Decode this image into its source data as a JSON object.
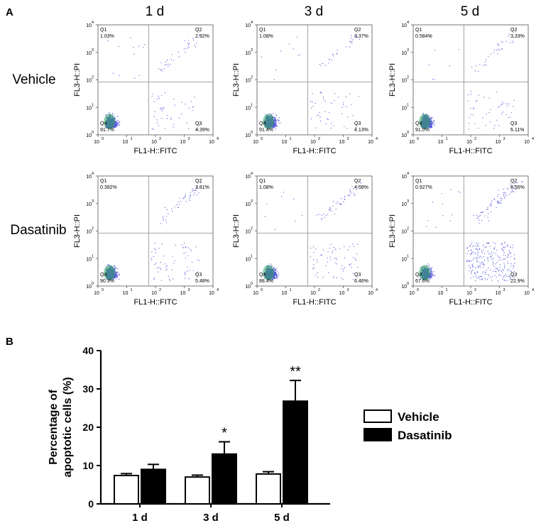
{
  "panel_a_label": "A",
  "panel_b_label": "B",
  "columns": [
    "1 d",
    "3 d",
    "5 d"
  ],
  "rows": [
    "Vehicle",
    "Dasatinib"
  ],
  "flow": {
    "xlabel": "FL1-H::FITC",
    "ylabel": "FL3-H::PI",
    "tick_base": "10",
    "tick_exps": [
      "0",
      "1",
      "2",
      "3",
      "4"
    ],
    "quadrant_names": [
      "Q1",
      "Q2",
      "Q3",
      "Q4"
    ],
    "dot_color": "#3a3ad8",
    "plots": [
      {
        "row": "Vehicle",
        "day": "1 d",
        "q1": "1.03%",
        "q2": "2.92%",
        "q3": "4.39%",
        "q4": "91.7%"
      },
      {
        "row": "Vehicle",
        "day": "3 d",
        "q1": "1.08%",
        "q2": "3.37%",
        "q3": "4.13%",
        "q4": "91.4%"
      },
      {
        "row": "Vehicle",
        "day": "5 d",
        "q1": "0.584%",
        "q2": "3.33%",
        "q3": "5.11%",
        "q4": "91.0%"
      },
      {
        "row": "Dasatinib",
        "day": "1 d",
        "q1": "0.392%",
        "q2": "3.81%",
        "q3": "5.48%",
        "q4": "90.3%"
      },
      {
        "row": "Dasatinib",
        "day": "3 d",
        "q1": "1.08%",
        "q2": "4.09%",
        "q3": "6.46%",
        "q4": "88.4%"
      },
      {
        "row": "Dasatinib",
        "day": "5 d",
        "q1": "0.927%",
        "q2": "8.56%",
        "q3": "22.9%",
        "q4": "67.6%"
      }
    ]
  },
  "chart_data": {
    "type": "bar",
    "title": "",
    "ylabel": "Percentage of apoptotic cells (%)",
    "ylabel_lines": [
      "Percentage of",
      "apoptotic cells (%)"
    ],
    "xlabel": "",
    "categories": [
      "1 d",
      "3 d",
      "5 d"
    ],
    "ylim": [
      0,
      40
    ],
    "yticks": [
      0,
      10,
      20,
      30,
      40
    ],
    "legend_position": "right",
    "series": [
      {
        "name": "Vehicle",
        "fill": "#ffffff",
        "values": [
          7.4,
          7.0,
          7.8
        ],
        "errors": [
          0.5,
          0.5,
          0.6
        ]
      },
      {
        "name": "Dasatinib",
        "fill": "#000000",
        "values": [
          9.0,
          13.0,
          26.8
        ],
        "errors": [
          1.3,
          3.2,
          5.4
        ]
      }
    ],
    "significance": [
      "",
      "*",
      "**"
    ]
  }
}
